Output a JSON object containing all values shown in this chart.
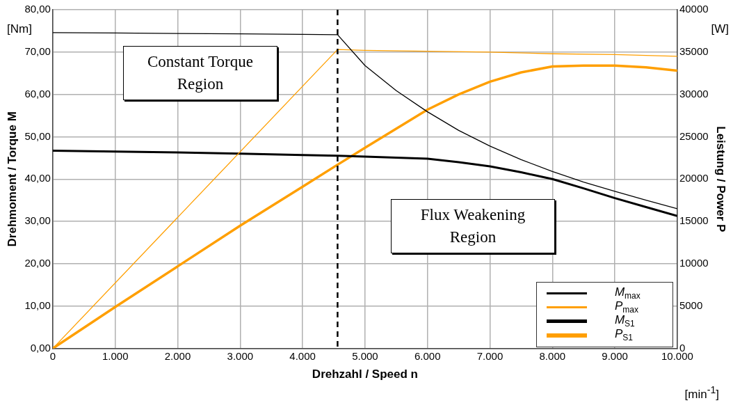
{
  "chart_data": {
    "type": "line",
    "xlabel": "Drehzahl / Speed n",
    "ylabel": "Drehmoment / Torque M",
    "y2label": "Leistung / Power P",
    "xlim": [
      0,
      10000
    ],
    "xticks": [
      0,
      {
        "value": 1000,
        "label": "1.000"
      },
      {
        "value": 2000,
        "label": "2.000"
      },
      {
        "value": 3000,
        "label": "3.000"
      },
      {
        "value": 4000,
        "label": "4.000"
      },
      {
        "value": 5000,
        "label": "5.000"
      },
      {
        "value": 6000,
        "label": "6.000"
      },
      {
        "value": 7000,
        "label": "7.000"
      },
      {
        "value": 8000,
        "label": "8.000"
      },
      {
        "value": 9000,
        "label": "9.000"
      },
      {
        "value": 10000,
        "label": "10.000"
      }
    ],
    "ylim": [
      0,
      80
    ],
    "yticks": [
      {
        "value": 0,
        "label": "0,00"
      },
      {
        "value": 10,
        "label": "10,00"
      },
      {
        "value": 20,
        "label": "20,00"
      },
      {
        "value": 30,
        "label": "30,00"
      },
      {
        "value": 40,
        "label": "40,00"
      },
      {
        "value": 50,
        "label": "50,00"
      },
      {
        "value": 60,
        "label": "60,00"
      },
      {
        "value": 70,
        "label": "70,00"
      },
      {
        "value": 80,
        "label": "80,00"
      }
    ],
    "y2lim": [
      0,
      40000
    ],
    "y2ticks": [
      0,
      5000,
      10000,
      15000,
      20000,
      25000,
      30000,
      35000,
      40000
    ],
    "grid": true,
    "legend": "bottom right",
    "marker": "none",
    "series": [
      {
        "name": "M$_{max}$",
        "color": "#000000",
        "x": [
          0,
          1000,
          2000,
          3000,
          4000,
          4560,
          5000,
          5500,
          6000,
          6500,
          7000,
          7500,
          8000,
          8500,
          9000,
          9500,
          10000
        ],
        "values": [
          74.6,
          74.5,
          74.4,
          74.3,
          74.2,
          74.1,
          66.8,
          60.9,
          55.9,
          51.5,
          47.8,
          44.6,
          41.8,
          39.3,
          37.1,
          35.0,
          33.0
        ]
      },
      {
        "name": "P$_{max}$",
        "color": "#ff9f00",
        "axis": "y2",
        "x": [
          0,
          4560,
          5000,
          6000,
          7000,
          8000,
          9000,
          10000
        ],
        "values": [
          0,
          35300,
          35200,
          35100,
          35000,
          34800,
          34700,
          34500
        ]
      },
      {
        "name": "M$_{S1}$",
        "color": "#000000",
        "x": [
          0,
          1000,
          2000,
          3000,
          4000,
          4560,
          5000,
          6000,
          6500,
          7000,
          7500,
          8000,
          8500,
          9000,
          9500,
          10000
        ],
        "values": [
          46.7,
          46.5,
          46.3,
          46.0,
          45.7,
          45.5,
          45.3,
          44.8,
          44.0,
          43.0,
          41.6,
          40.0,
          37.8,
          35.5,
          33.4,
          31.3
        ]
      },
      {
        "name": "P$_{S1}$",
        "color": "#ff9f00",
        "axis": "y2",
        "x": [
          0,
          1000,
          2000,
          3000,
          4000,
          4560,
          5000,
          6000,
          6500,
          7000,
          7500,
          8000,
          8500,
          9000,
          9500,
          10000
        ],
        "values": [
          0,
          4900,
          9700,
          14500,
          19100,
          21700,
          23700,
          28200,
          30000,
          31500,
          32600,
          33300,
          33400,
          33400,
          33200,
          32800
        ]
      }
    ],
    "ref_lines": [
      {
        "axis": "x",
        "value": 4560,
        "color": "#000000",
        "line_style": "dashed"
      }
    ],
    "annotations": [
      "Constant Torque Region",
      "Flux Weakening Region",
      "[Nm]",
      "[W]",
      "[min$^{-1}$]"
    ]
  }
}
